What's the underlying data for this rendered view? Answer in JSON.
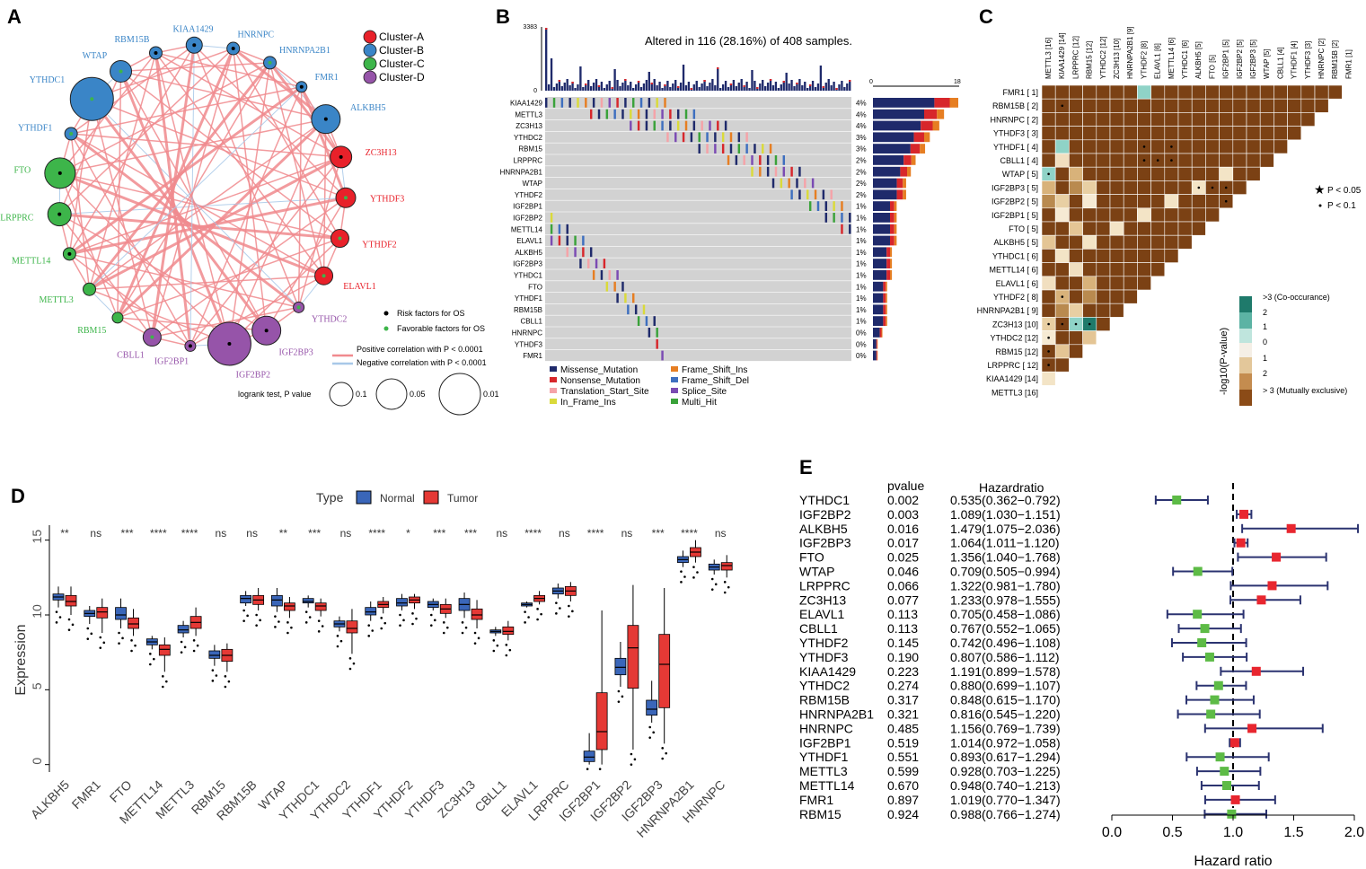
{
  "panel_letters": [
    "A",
    "B",
    "C",
    "D",
    "E"
  ],
  "colors": {
    "clusterA": "#e8212a",
    "clusterB": "#3a85c7",
    "clusterC": "#3db54a",
    "clusterD": "#9654a9",
    "pos_edge": "#f08a8e",
    "neg_edge": "#a8c8e8",
    "missense": "#1f2a6b",
    "nonsense": "#d7262b",
    "translation": "#f5a3a8",
    "inframe": "#dada3a",
    "frameshift_ins": "#e67e22",
    "frameshift_del": "#3e6fbf",
    "splice": "#7b4bb3",
    "multihit": "#3aa23a",
    "oncogrid_bg": "#d2d2d2",
    "cooc_dark": "#7b4114",
    "cooc_teal": "#2a9d8f",
    "normal_box": "#3a66b9",
    "tumor_box": "#e53935",
    "forest_green": "#5dbb46",
    "forest_red": "#e8262f",
    "forest_line": "#2b3370"
  },
  "network": {
    "legend_title_items": [
      "Cluster-A",
      "Cluster-B",
      "Cluster-C",
      "Cluster-D"
    ],
    "legend_dots": [
      "Risk factors for OS",
      "Favorable factors for OS"
    ],
    "legend_lines": [
      "Positive correlation with P < 0.0001",
      "Negative correlation with P < 0.0001"
    ],
    "legend_size_title": "logrank test, P value",
    "legend_size_values": [
      "0.1",
      "0.05",
      "0.01"
    ],
    "nodes": [
      {
        "name": "ALKBH5",
        "cluster": "B",
        "risk": "risk",
        "size": 16
      },
      {
        "name": "ZC3H13",
        "cluster": "A",
        "risk": "risk",
        "size": 12
      },
      {
        "name": "YTHDF3",
        "cluster": "A",
        "risk": "favorable",
        "size": 11
      },
      {
        "name": "YTHDF2",
        "cluster": "A",
        "risk": "favorable",
        "size": 10
      },
      {
        "name": "ELAVL1",
        "cluster": "A",
        "risk": "favorable",
        "size": 10
      },
      {
        "name": "YTHDC2",
        "cluster": "D",
        "risk": "favorable",
        "size": 6
      },
      {
        "name": "IGF2BP3",
        "cluster": "D",
        "risk": "risk",
        "size": 16
      },
      {
        "name": "IGF2BP2",
        "cluster": "D",
        "risk": "risk",
        "size": 24
      },
      {
        "name": "IGF2BP1",
        "cluster": "D",
        "risk": "risk",
        "size": 6
      },
      {
        "name": "CBLL1",
        "cluster": "D",
        "risk": "favorable",
        "size": 10
      },
      {
        "name": "RBM15",
        "cluster": "C",
        "risk": "favorable",
        "size": 6
      },
      {
        "name": "METTL3",
        "cluster": "C",
        "risk": "favorable",
        "size": 7
      },
      {
        "name": "METTL14",
        "cluster": "C",
        "risk": "risk",
        "size": 7
      },
      {
        "name": "LRPPRC",
        "cluster": "C",
        "risk": "risk",
        "size": 13
      },
      {
        "name": "FTO",
        "cluster": "C",
        "risk": "risk",
        "size": 17
      },
      {
        "name": "YTHDF1",
        "cluster": "B",
        "risk": "favorable",
        "size": 7
      },
      {
        "name": "YTHDC1",
        "cluster": "B",
        "risk": "favorable",
        "size": 24
      },
      {
        "name": "WTAP",
        "cluster": "B",
        "risk": "favorable",
        "size": 12
      },
      {
        "name": "RBM15B",
        "cluster": "B",
        "risk": "risk",
        "size": 7
      },
      {
        "name": "KIAA1429",
        "cluster": "B",
        "risk": "risk",
        "size": 9
      },
      {
        "name": "HNRNPC",
        "cluster": "B",
        "risk": "risk",
        "size": 7
      },
      {
        "name": "HNRNPA2B1",
        "cluster": "B",
        "risk": "favorable",
        "size": 7
      },
      {
        "name": "FMR1",
        "cluster": "B",
        "risk": "risk",
        "size": 6
      }
    ]
  },
  "oncoplot": {
    "title": "Altered in 116 (28.16%) of 408 samples.",
    "top_axis_max": "3383",
    "top_axis_min": "0",
    "side_axis_min": "0",
    "side_axis_max": "18",
    "genes": [
      {
        "name": "KIAA1429",
        "pct": "4%",
        "count": 18
      },
      {
        "name": "METTL3",
        "pct": "4%",
        "count": 15
      },
      {
        "name": "ZC3H13",
        "pct": "4%",
        "count": 14
      },
      {
        "name": "YTHDC2",
        "pct": "3%",
        "count": 12
      },
      {
        "name": "RBM15",
        "pct": "3%",
        "count": 11
      },
      {
        "name": "LRPPRC",
        "pct": "2%",
        "count": 9
      },
      {
        "name": "HNRNPA2B1",
        "pct": "2%",
        "count": 8
      },
      {
        "name": "WTAP",
        "pct": "2%",
        "count": 7
      },
      {
        "name": "YTHDF2",
        "pct": "2%",
        "count": 7
      },
      {
        "name": "IGF2BP1",
        "pct": "1%",
        "count": 5
      },
      {
        "name": "IGF2BP2",
        "pct": "1%",
        "count": 5
      },
      {
        "name": "METTL14",
        "pct": "1%",
        "count": 5
      },
      {
        "name": "ELAVL1",
        "pct": "1%",
        "count": 5
      },
      {
        "name": "ALKBH5",
        "pct": "1%",
        "count": 4
      },
      {
        "name": "IGF2BP3",
        "pct": "1%",
        "count": 4
      },
      {
        "name": "YTHDC1",
        "pct": "1%",
        "count": 4
      },
      {
        "name": "FTO",
        "pct": "1%",
        "count": 3
      },
      {
        "name": "YTHDF1",
        "pct": "1%",
        "count": 3
      },
      {
        "name": "RBM15B",
        "pct": "1%",
        "count": 3
      },
      {
        "name": "CBLL1",
        "pct": "1%",
        "count": 3
      },
      {
        "name": "HNRNPC",
        "pct": "0%",
        "count": 2
      },
      {
        "name": "YTHDF3",
        "pct": "0%",
        "count": 1
      },
      {
        "name": "FMR1",
        "pct": "0%",
        "count": 1
      }
    ],
    "legend": [
      {
        "label": "Missense_Mutation",
        "color": "#1f2a6b"
      },
      {
        "label": "Nonsense_Mutation",
        "color": "#d7262b"
      },
      {
        "label": "Translation_Start_Site",
        "color": "#f5a3a8"
      },
      {
        "label": "In_Frame_Ins",
        "color": "#dada3a"
      },
      {
        "label": "Frame_Shift_Ins",
        "color": "#e67e22"
      },
      {
        "label": "Frame_Shift_Del",
        "color": "#3e6fbf"
      },
      {
        "label": "Splice_Site",
        "color": "#7b4bb3"
      },
      {
        "label": "Multi_Hit",
        "color": "#3aa23a"
      }
    ]
  },
  "cooccurrence": {
    "rows": [
      "FMR1 [ 1]",
      "RBM15B [ 2]",
      "HNRNPC [ 2]",
      "YTHDF3 [ 3]",
      "YTHDF1 [ 4]",
      "CBLL1 [ 4]",
      "WTAP [ 5]",
      "IGF2BP3 [ 5]",
      "IGF2BP2 [ 5]",
      "IGF2BP1 [ 5]",
      "FTO [ 5]",
      "ALKBH5 [ 5]",
      "YTHDC1 [ 6]",
      "METTL14 [ 6]",
      "ELAVL1 [ 6]",
      "YTHDF2 [ 8]",
      "HNRNPA2B1 [ 9]",
      "ZC3H13 [10]",
      "YTHDC2 [12]",
      "RBM15 [12]",
      "LRPPRC [ 12]",
      "KIAA1429 [14]",
      "METTL3 [16]"
    ],
    "cols": [
      "METTL3 [16]",
      "KIAA1429 [14]",
      "LRPPRC [12]",
      "RBM15 [12]",
      "YTHDC2 [12]",
      "ZC3H13 [10]",
      "HNRNPA2B1 [9]",
      "YTHDF2 [8]",
      "ELAVL1 [6]",
      "METTL14 [6]",
      "YTHDC1 [6]",
      "ALKBH5 [5]",
      "FTO [5]",
      "IGF2BP1 [5]",
      "IGF2BP2 [5]",
      "IGF2BP3 [5]",
      "WTAP [5]",
      "CBLL1 [4]",
      "YTHDF1 [4]",
      "YTHDF3 [3]",
      "HNRNPC [2]",
      "RBM15B [2]",
      "FMR1 [1]"
    ],
    "sig_legend": [
      "P < 0.05",
      "P < 0.1"
    ],
    "scale_labels": [
      ">3 (Co-occurance)",
      "2",
      "1",
      "0",
      "1",
      "2",
      "> 3 (Mutually exclusive)"
    ],
    "scale_title": "-log10(P-value)"
  },
  "chart_data": [
    {
      "type": "box",
      "panel": "D",
      "legend_title": "Type",
      "legend": [
        "Normal",
        "Tumor"
      ],
      "ylabel": "Expression",
      "ylim": [
        -0.5,
        16
      ],
      "yticks": [
        "0",
        "5",
        "10",
        "15"
      ],
      "categories": [
        "ALKBH5",
        "FMR1",
        "FTO",
        "METTL14",
        "METTL3",
        "RBM15",
        "RBM15B",
        "WTAP",
        "YTHDC1",
        "YTHDC2",
        "YTHDF1",
        "YTHDF2",
        "YTHDF3",
        "ZC3H13",
        "CBLL1",
        "ELAVL1",
        "LRPPRC",
        "IGF2BP1",
        "IGF2BP2",
        "IGF2BP3",
        "HNRNPA2B1",
        "HNRNPC"
      ],
      "significance": [
        "**",
        "ns",
        "***",
        "****",
        "****",
        "ns",
        "ns",
        "**",
        "***",
        "ns",
        "****",
        "*",
        "***",
        "***",
        "ns",
        "****",
        "ns",
        "****",
        "ns",
        "***",
        "****",
        "ns"
      ],
      "normal": [
        {
          "min": 10.5,
          "q1": 11.0,
          "med": 11.2,
          "q3": 11.4,
          "max": 11.9
        },
        {
          "min": 9.4,
          "q1": 9.9,
          "med": 10.1,
          "q3": 10.3,
          "max": 10.6
        },
        {
          "min": 9.1,
          "q1": 9.7,
          "med": 10.0,
          "q3": 10.5,
          "max": 11.1
        },
        {
          "min": 7.7,
          "q1": 8.0,
          "med": 8.2,
          "q3": 8.4,
          "max": 8.6
        },
        {
          "min": 8.5,
          "q1": 8.8,
          "med": 9.0,
          "q3": 9.3,
          "max": 9.6
        },
        {
          "min": 6.6,
          "q1": 7.1,
          "med": 7.3,
          "q3": 7.6,
          "max": 8.0
        },
        {
          "min": 10.6,
          "q1": 10.8,
          "med": 11.1,
          "q3": 11.3,
          "max": 11.6
        },
        {
          "min": 10.2,
          "q1": 10.6,
          "med": 11.0,
          "q3": 11.3,
          "max": 11.8
        },
        {
          "min": 10.5,
          "q1": 10.8,
          "med": 10.9,
          "q3": 11.1,
          "max": 11.3
        },
        {
          "min": 8.9,
          "q1": 9.2,
          "med": 9.4,
          "q3": 9.6,
          "max": 9.9
        },
        {
          "min": 9.6,
          "q1": 10.0,
          "med": 10.2,
          "q3": 10.5,
          "max": 10.9
        },
        {
          "min": 10.3,
          "q1": 10.6,
          "med": 10.8,
          "q3": 11.1,
          "max": 11.4
        },
        {
          "min": 10.3,
          "q1": 10.5,
          "med": 10.7,
          "q3": 10.9,
          "max": 11.1
        },
        {
          "min": 9.8,
          "q1": 10.3,
          "med": 10.7,
          "q3": 11.1,
          "max": 11.5
        },
        {
          "min": 8.6,
          "q1": 8.8,
          "med": 8.9,
          "q3": 9.0,
          "max": 9.2
        },
        {
          "min": 10.5,
          "q1": 10.6,
          "med": 10.7,
          "q3": 10.8,
          "max": 10.9
        },
        {
          "min": 11.1,
          "q1": 11.4,
          "med": 11.6,
          "q3": 11.8,
          "max": 12.1
        },
        {
          "min": 0.0,
          "q1": 0.2,
          "med": 0.5,
          "q3": 0.9,
          "max": 2.1
        },
        {
          "min": 5.2,
          "q1": 6.0,
          "med": 6.5,
          "q3": 7.1,
          "max": 8.2
        },
        {
          "min": 2.8,
          "q1": 3.3,
          "med": 3.7,
          "q3": 4.3,
          "max": 5.6
        },
        {
          "min": 13.2,
          "q1": 13.5,
          "med": 13.7,
          "q3": 13.9,
          "max": 14.3
        },
        {
          "min": 12.7,
          "q1": 13.0,
          "med": 13.2,
          "q3": 13.4,
          "max": 13.7
        }
      ],
      "tumor": [
        {
          "min": 10.0,
          "q1": 10.6,
          "med": 10.9,
          "q3": 11.3,
          "max": 11.9
        },
        {
          "min": 8.8,
          "q1": 9.8,
          "med": 10.2,
          "q3": 10.5,
          "max": 11.1
        },
        {
          "min": 8.6,
          "q1": 9.1,
          "med": 9.4,
          "q3": 9.8,
          "max": 10.4
        },
        {
          "min": 6.2,
          "q1": 7.3,
          "med": 7.7,
          "q3": 8.0,
          "max": 8.5
        },
        {
          "min": 8.6,
          "q1": 9.1,
          "med": 9.5,
          "q3": 9.9,
          "max": 10.5
        },
        {
          "min": 6.2,
          "q1": 6.9,
          "med": 7.3,
          "q3": 7.7,
          "max": 8.1
        },
        {
          "min": 10.3,
          "q1": 10.7,
          "med": 11.0,
          "q3": 11.3,
          "max": 11.8
        },
        {
          "min": 9.8,
          "q1": 10.3,
          "med": 10.6,
          "q3": 10.8,
          "max": 11.2
        },
        {
          "min": 9.9,
          "q1": 10.3,
          "med": 10.6,
          "q3": 10.8,
          "max": 11.1
        },
        {
          "min": 7.4,
          "q1": 8.8,
          "med": 9.1,
          "q3": 9.6,
          "max": 10.4
        },
        {
          "min": 10.1,
          "q1": 10.5,
          "med": 10.7,
          "q3": 10.9,
          "max": 11.2
        },
        {
          "min": 10.4,
          "q1": 10.8,
          "med": 11.0,
          "q3": 11.2,
          "max": 11.4
        },
        {
          "min": 9.8,
          "q1": 10.1,
          "med": 10.4,
          "q3": 10.7,
          "max": 11.1
        },
        {
          "min": 9.1,
          "q1": 9.7,
          "med": 10.0,
          "q3": 10.4,
          "max": 11.0
        },
        {
          "min": 8.3,
          "q1": 8.7,
          "med": 8.9,
          "q3": 9.2,
          "max": 9.6
        },
        {
          "min": 10.7,
          "q1": 10.9,
          "med": 11.1,
          "q3": 11.3,
          "max": 11.6
        },
        {
          "min": 10.9,
          "q1": 11.3,
          "med": 11.6,
          "q3": 11.9,
          "max": 12.2
        },
        {
          "min": 0.0,
          "q1": 1.0,
          "med": 2.2,
          "q3": 4.8,
          "max": 10.3
        },
        {
          "min": 1.0,
          "q1": 5.1,
          "med": 7.8,
          "q3": 9.3,
          "max": 12.0
        },
        {
          "min": 1.4,
          "q1": 3.8,
          "med": 6.7,
          "q3": 8.7,
          "max": 11.8
        },
        {
          "min": 13.5,
          "q1": 13.9,
          "med": 14.2,
          "q3": 14.5,
          "max": 15.0
        },
        {
          "min": 12.5,
          "q1": 13.0,
          "med": 13.3,
          "q3": 13.5,
          "max": 14.0
        }
      ]
    },
    {
      "type": "forest",
      "panel": "E",
      "col_headers": [
        "pvalue",
        "Hazardratio"
      ],
      "xlabel": "Hazard ratio",
      "xlim": [
        0.0,
        2.0
      ],
      "xticks": [
        "0.0",
        "0.5",
        "1.0",
        "1.5",
        "2.0"
      ],
      "reference": 1.0,
      "rows": [
        {
          "gene": "YTHDC1",
          "pvalue": "0.002",
          "hr_text": "0.535(0.362−0.792)",
          "hr": 0.535,
          "lo": 0.362,
          "hi": 0.792
        },
        {
          "gene": "IGF2BP2",
          "pvalue": "0.003",
          "hr_text": "1.089(1.030−1.151)",
          "hr": 1.089,
          "lo": 1.03,
          "hi": 1.151
        },
        {
          "gene": "ALKBH5",
          "pvalue": "0.016",
          "hr_text": "1.479(1.075−2.036)",
          "hr": 1.479,
          "lo": 1.075,
          "hi": 2.036
        },
        {
          "gene": "IGF2BP3",
          "pvalue": "0.017",
          "hr_text": "1.064(1.011−1.120)",
          "hr": 1.064,
          "lo": 1.011,
          "hi": 1.12
        },
        {
          "gene": "FTO",
          "pvalue": "0.025",
          "hr_text": "1.356(1.040−1.768)",
          "hr": 1.356,
          "lo": 1.04,
          "hi": 1.768
        },
        {
          "gene": "WTAP",
          "pvalue": "0.046",
          "hr_text": "0.709(0.505−0.994)",
          "hr": 0.709,
          "lo": 0.505,
          "hi": 0.994
        },
        {
          "gene": "LRPPRC",
          "pvalue": "0.066",
          "hr_text": "1.322(0.981−1.780)",
          "hr": 1.322,
          "lo": 0.981,
          "hi": 1.78
        },
        {
          "gene": "ZC3H13",
          "pvalue": "0.077",
          "hr_text": "1.233(0.978−1.555)",
          "hr": 1.233,
          "lo": 0.978,
          "hi": 1.555
        },
        {
          "gene": "ELAVL1",
          "pvalue": "0.113",
          "hr_text": "0.705(0.458−1.086)",
          "hr": 0.705,
          "lo": 0.458,
          "hi": 1.086
        },
        {
          "gene": "CBLL1",
          "pvalue": "0.113",
          "hr_text": "0.767(0.552−1.065)",
          "hr": 0.767,
          "lo": 0.552,
          "hi": 1.065
        },
        {
          "gene": "YTHDF2",
          "pvalue": "0.145",
          "hr_text": "0.742(0.496−1.108)",
          "hr": 0.742,
          "lo": 0.496,
          "hi": 1.108
        },
        {
          "gene": "YTHDF3",
          "pvalue": "0.190",
          "hr_text": "0.807(0.586−1.112)",
          "hr": 0.807,
          "lo": 0.586,
          "hi": 1.112
        },
        {
          "gene": "KIAA1429",
          "pvalue": "0.223",
          "hr_text": "1.191(0.899−1.578)",
          "hr": 1.191,
          "lo": 0.899,
          "hi": 1.578
        },
        {
          "gene": "YTHDC2",
          "pvalue": "0.274",
          "hr_text": "0.880(0.699−1.107)",
          "hr": 0.88,
          "lo": 0.699,
          "hi": 1.107
        },
        {
          "gene": "RBM15B",
          "pvalue": "0.317",
          "hr_text": "0.848(0.615−1.170)",
          "hr": 0.848,
          "lo": 0.615,
          "hi": 1.17
        },
        {
          "gene": "HNRNPA2B1",
          "pvalue": "0.321",
          "hr_text": "0.816(0.545−1.220)",
          "hr": 0.816,
          "lo": 0.545,
          "hi": 1.22
        },
        {
          "gene": "HNRNPC",
          "pvalue": "0.485",
          "hr_text": "1.156(0.769−1.739)",
          "hr": 1.156,
          "lo": 0.769,
          "hi": 1.739
        },
        {
          "gene": "IGF2BP1",
          "pvalue": "0.519",
          "hr_text": "1.014(0.972−1.058)",
          "hr": 1.014,
          "lo": 0.972,
          "hi": 1.058
        },
        {
          "gene": "YTHDF1",
          "pvalue": "0.551",
          "hr_text": "0.893(0.617−1.294)",
          "hr": 0.893,
          "lo": 0.617,
          "hi": 1.294
        },
        {
          "gene": "METTL3",
          "pvalue": "0.599",
          "hr_text": "0.928(0.703−1.225)",
          "hr": 0.928,
          "lo": 0.703,
          "hi": 1.225
        },
        {
          "gene": "METTL14",
          "pvalue": "0.670",
          "hr_text": "0.948(0.740−1.213)",
          "hr": 0.948,
          "lo": 0.74,
          "hi": 1.213
        },
        {
          "gene": "FMR1",
          "pvalue": "0.897",
          "hr_text": "1.019(0.770−1.347)",
          "hr": 1.019,
          "lo": 0.77,
          "hi": 1.347
        },
        {
          "gene": "RBM15",
          "pvalue": "0.924",
          "hr_text": "0.988(0.766−1.274)",
          "hr": 0.988,
          "lo": 0.766,
          "hi": 1.274
        }
      ]
    }
  ]
}
